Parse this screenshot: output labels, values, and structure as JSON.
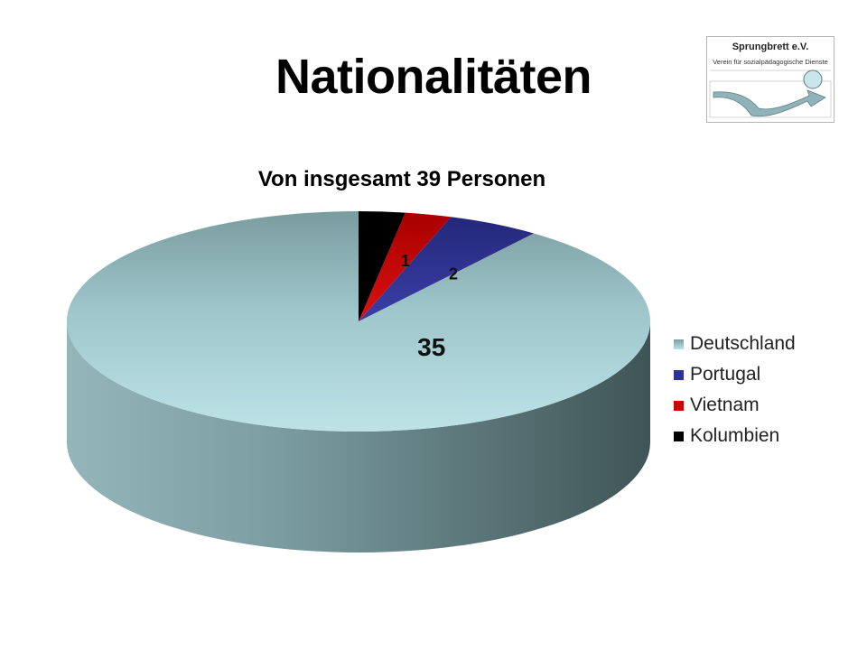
{
  "slide": {
    "title": "Nationalitäten"
  },
  "logo": {
    "name": "Sprungbrett e.V.",
    "subtitle": "Verein für sozialpädagogische Dienste"
  },
  "chart_data": {
    "type": "pie",
    "style": "3d",
    "title": "Von insgesamt 39 Personen",
    "legend_position": "right",
    "categories": [
      "Deutschland",
      "Portugal",
      "Vietnam",
      "Kolumbien"
    ],
    "values": [
      35,
      2,
      1,
      1
    ],
    "data_labels": [
      "35",
      "2",
      "1",
      ""
    ],
    "colors": [
      "#9ec6cb",
      "#2e3192",
      "#cc0000",
      "#000000"
    ]
  }
}
